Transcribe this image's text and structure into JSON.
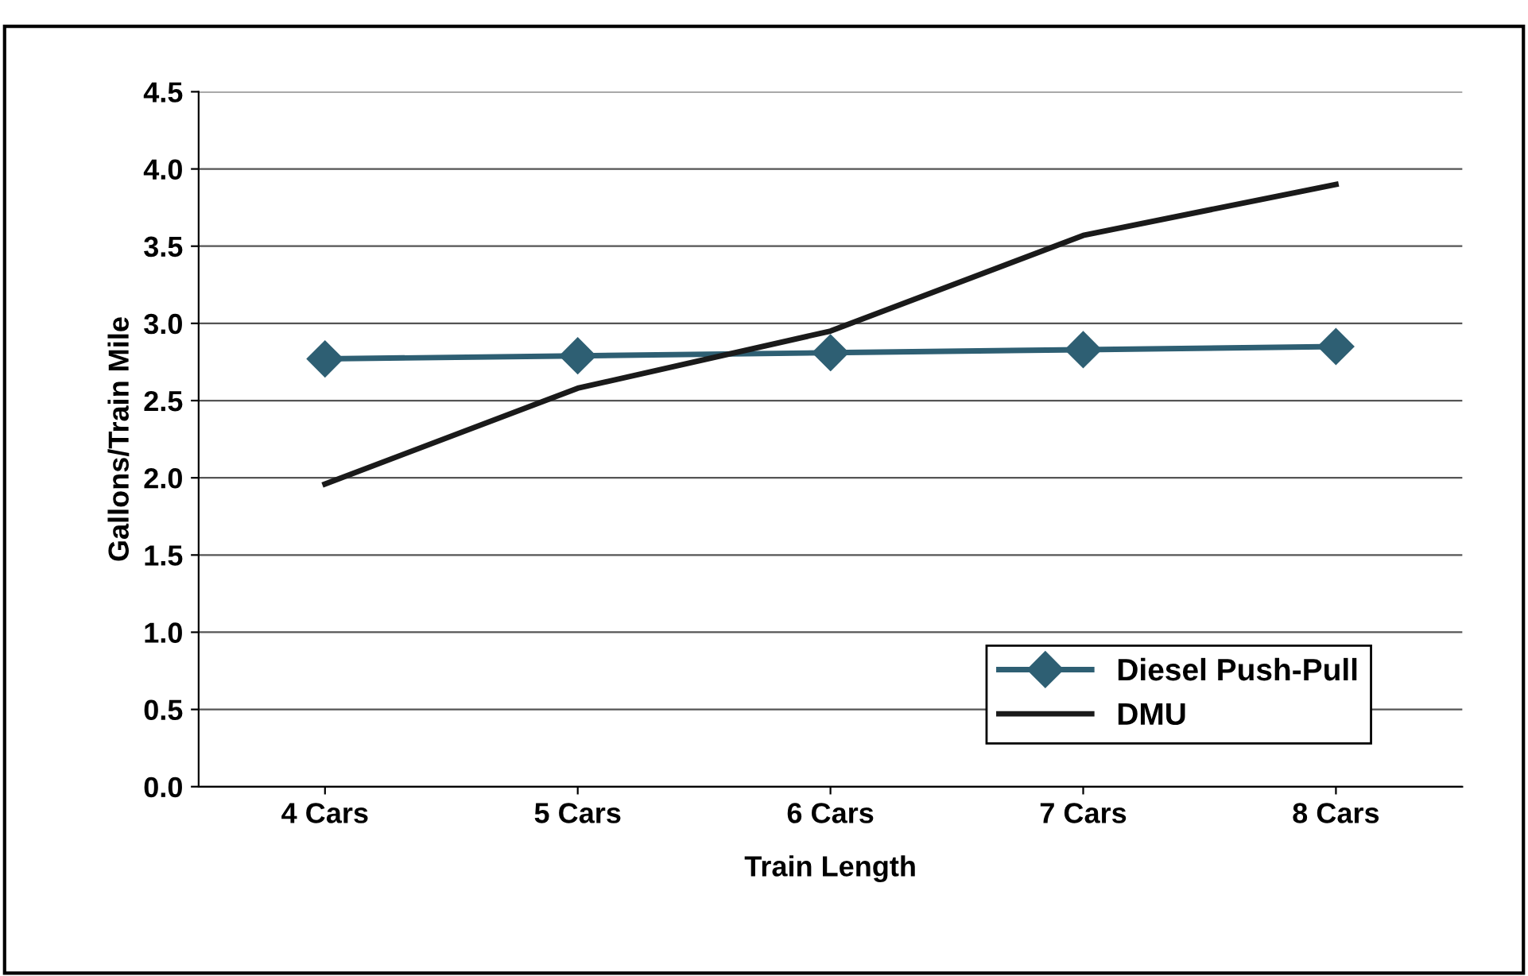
{
  "chart_data": {
    "type": "line",
    "xlabel": "Train Length",
    "ylabel": "Gallons/Train Mile",
    "categories": [
      "4 Cars",
      "5 Cars",
      "6 Cars",
      "7 Cars",
      "8 Cars"
    ],
    "series": [
      {
        "name": "Diesel Push-Pull",
        "color": "#2e5f73",
        "values": [
          2.77,
          2.79,
          2.81,
          2.83,
          2.85
        ],
        "marker": "diamond"
      },
      {
        "name": "DMU",
        "color": "#1a1a1a",
        "values": [
          1.96,
          2.58,
          2.95,
          3.57,
          3.9
        ],
        "marker": "none"
      }
    ],
    "ylim": [
      0,
      4.5
    ],
    "yticks": [
      {
        "value": 0,
        "label": "0.0"
      },
      {
        "value": 0.5,
        "label": "0.5"
      },
      {
        "value": 1,
        "label": "1.0"
      },
      {
        "value": 1.5,
        "label": "1.5"
      },
      {
        "value": 2,
        "label": "2.0"
      },
      {
        "value": 2.5,
        "label": "2.5"
      },
      {
        "value": 3,
        "label": "3.0"
      },
      {
        "value": 3.5,
        "label": "3.5"
      },
      {
        "value": 4,
        "label": "4.0"
      },
      {
        "value": 4.5,
        "label": "4.5"
      }
    ],
    "grid": "y",
    "legend": "bottom right"
  }
}
